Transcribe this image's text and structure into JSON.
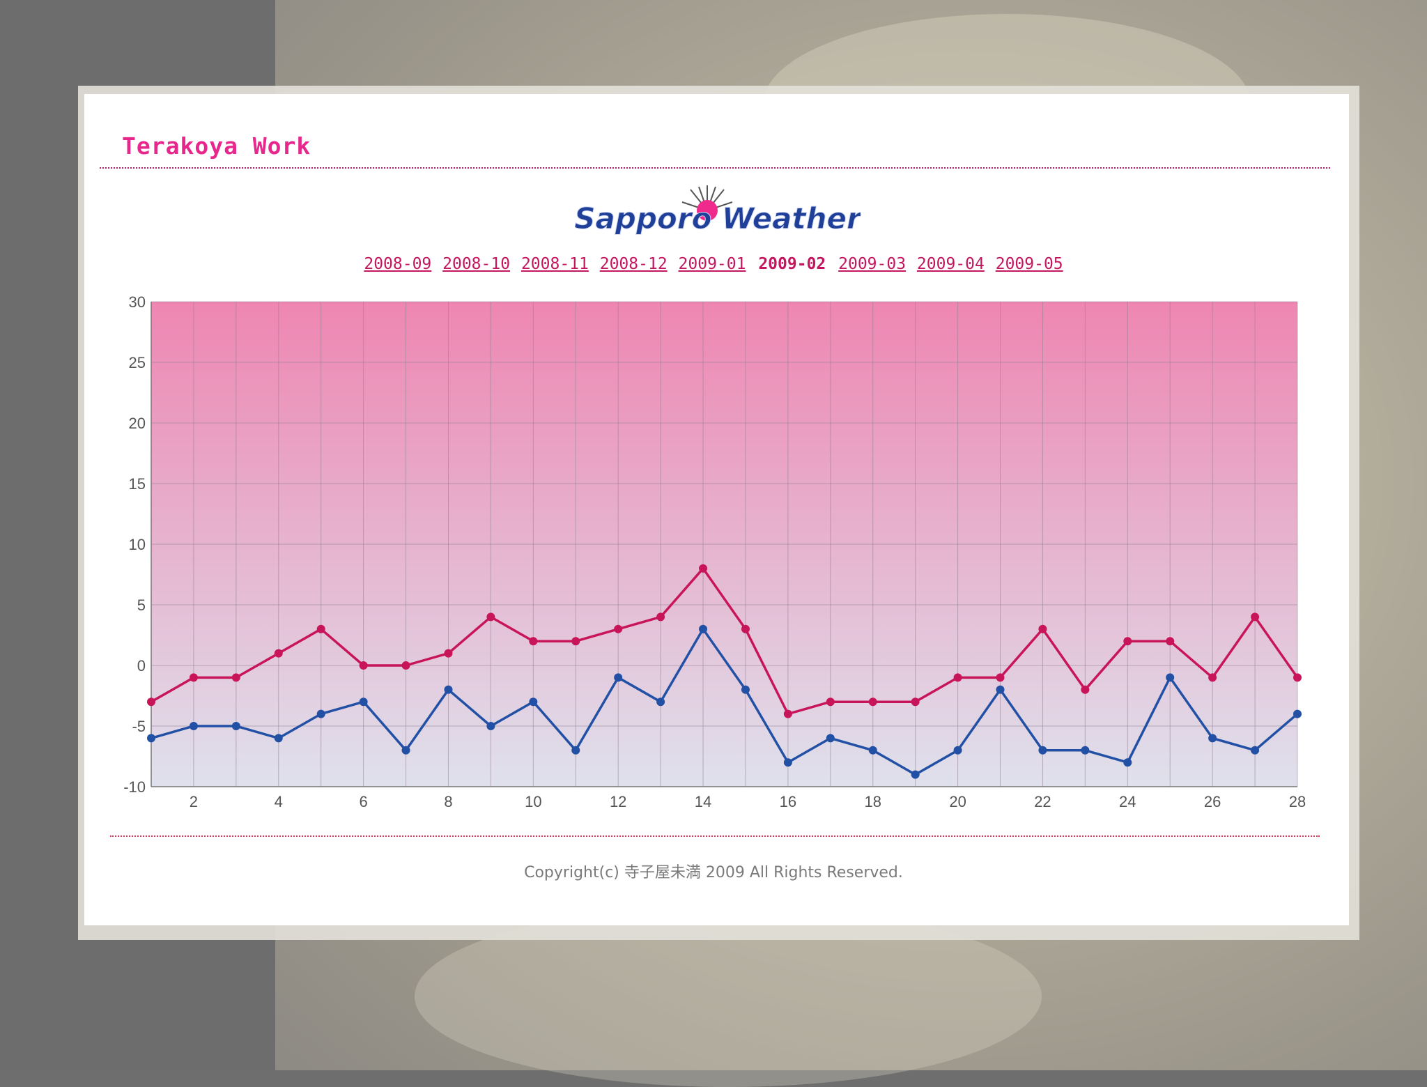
{
  "site": {
    "title": "Terakoya Work",
    "logo_text": "Sapporo Weather"
  },
  "month_nav": {
    "months": [
      "2008-09",
      "2008-10",
      "2008-11",
      "2008-12",
      "2009-01",
      "2009-02",
      "2009-03",
      "2009-04",
      "2009-05"
    ],
    "current": "2009-02"
  },
  "colors": {
    "accent": "#e8278d",
    "high_line": "#c8155a",
    "low_line": "#2250a5",
    "plot_top": "#ee86b2",
    "plot_bottom": "#dfe1ec"
  },
  "chart_data": {
    "type": "line",
    "title": "",
    "xlabel": "",
    "ylabel": "",
    "x": [
      1,
      2,
      3,
      4,
      5,
      6,
      7,
      8,
      9,
      10,
      11,
      12,
      13,
      14,
      15,
      16,
      17,
      18,
      19,
      20,
      21,
      22,
      23,
      24,
      25,
      26,
      27,
      28
    ],
    "x_ticks": [
      2,
      4,
      6,
      8,
      10,
      12,
      14,
      16,
      18,
      20,
      22,
      24,
      26,
      28
    ],
    "y_ticks": [
      30,
      25,
      20,
      15,
      10,
      5,
      0,
      -5,
      -10
    ],
    "ylim": [
      -10,
      30
    ],
    "grid": true,
    "series": [
      {
        "values": [
          -3,
          -1,
          -1,
          1,
          3,
          0,
          0,
          1,
          4,
          2,
          2,
          3,
          4,
          8,
          3,
          -4,
          -3,
          -3,
          -3,
          -1,
          -1,
          3,
          -2,
          2,
          2,
          -1,
          4,
          -1
        ],
        "color": "#c8155a"
      },
      {
        "values": [
          -6,
          -5,
          -5,
          -6,
          -4,
          -3,
          -7,
          -2,
          -5,
          -3,
          -7,
          -1,
          -3,
          3,
          -2,
          -8,
          -6,
          -7,
          -9,
          -7,
          -2,
          -7,
          -7,
          -8,
          -1,
          -6,
          -7,
          -4
        ],
        "color": "#2250a5"
      }
    ]
  },
  "footer": {
    "copyright": "Copyright(c) 寺子屋未満 2009 All Rights Reserved."
  }
}
